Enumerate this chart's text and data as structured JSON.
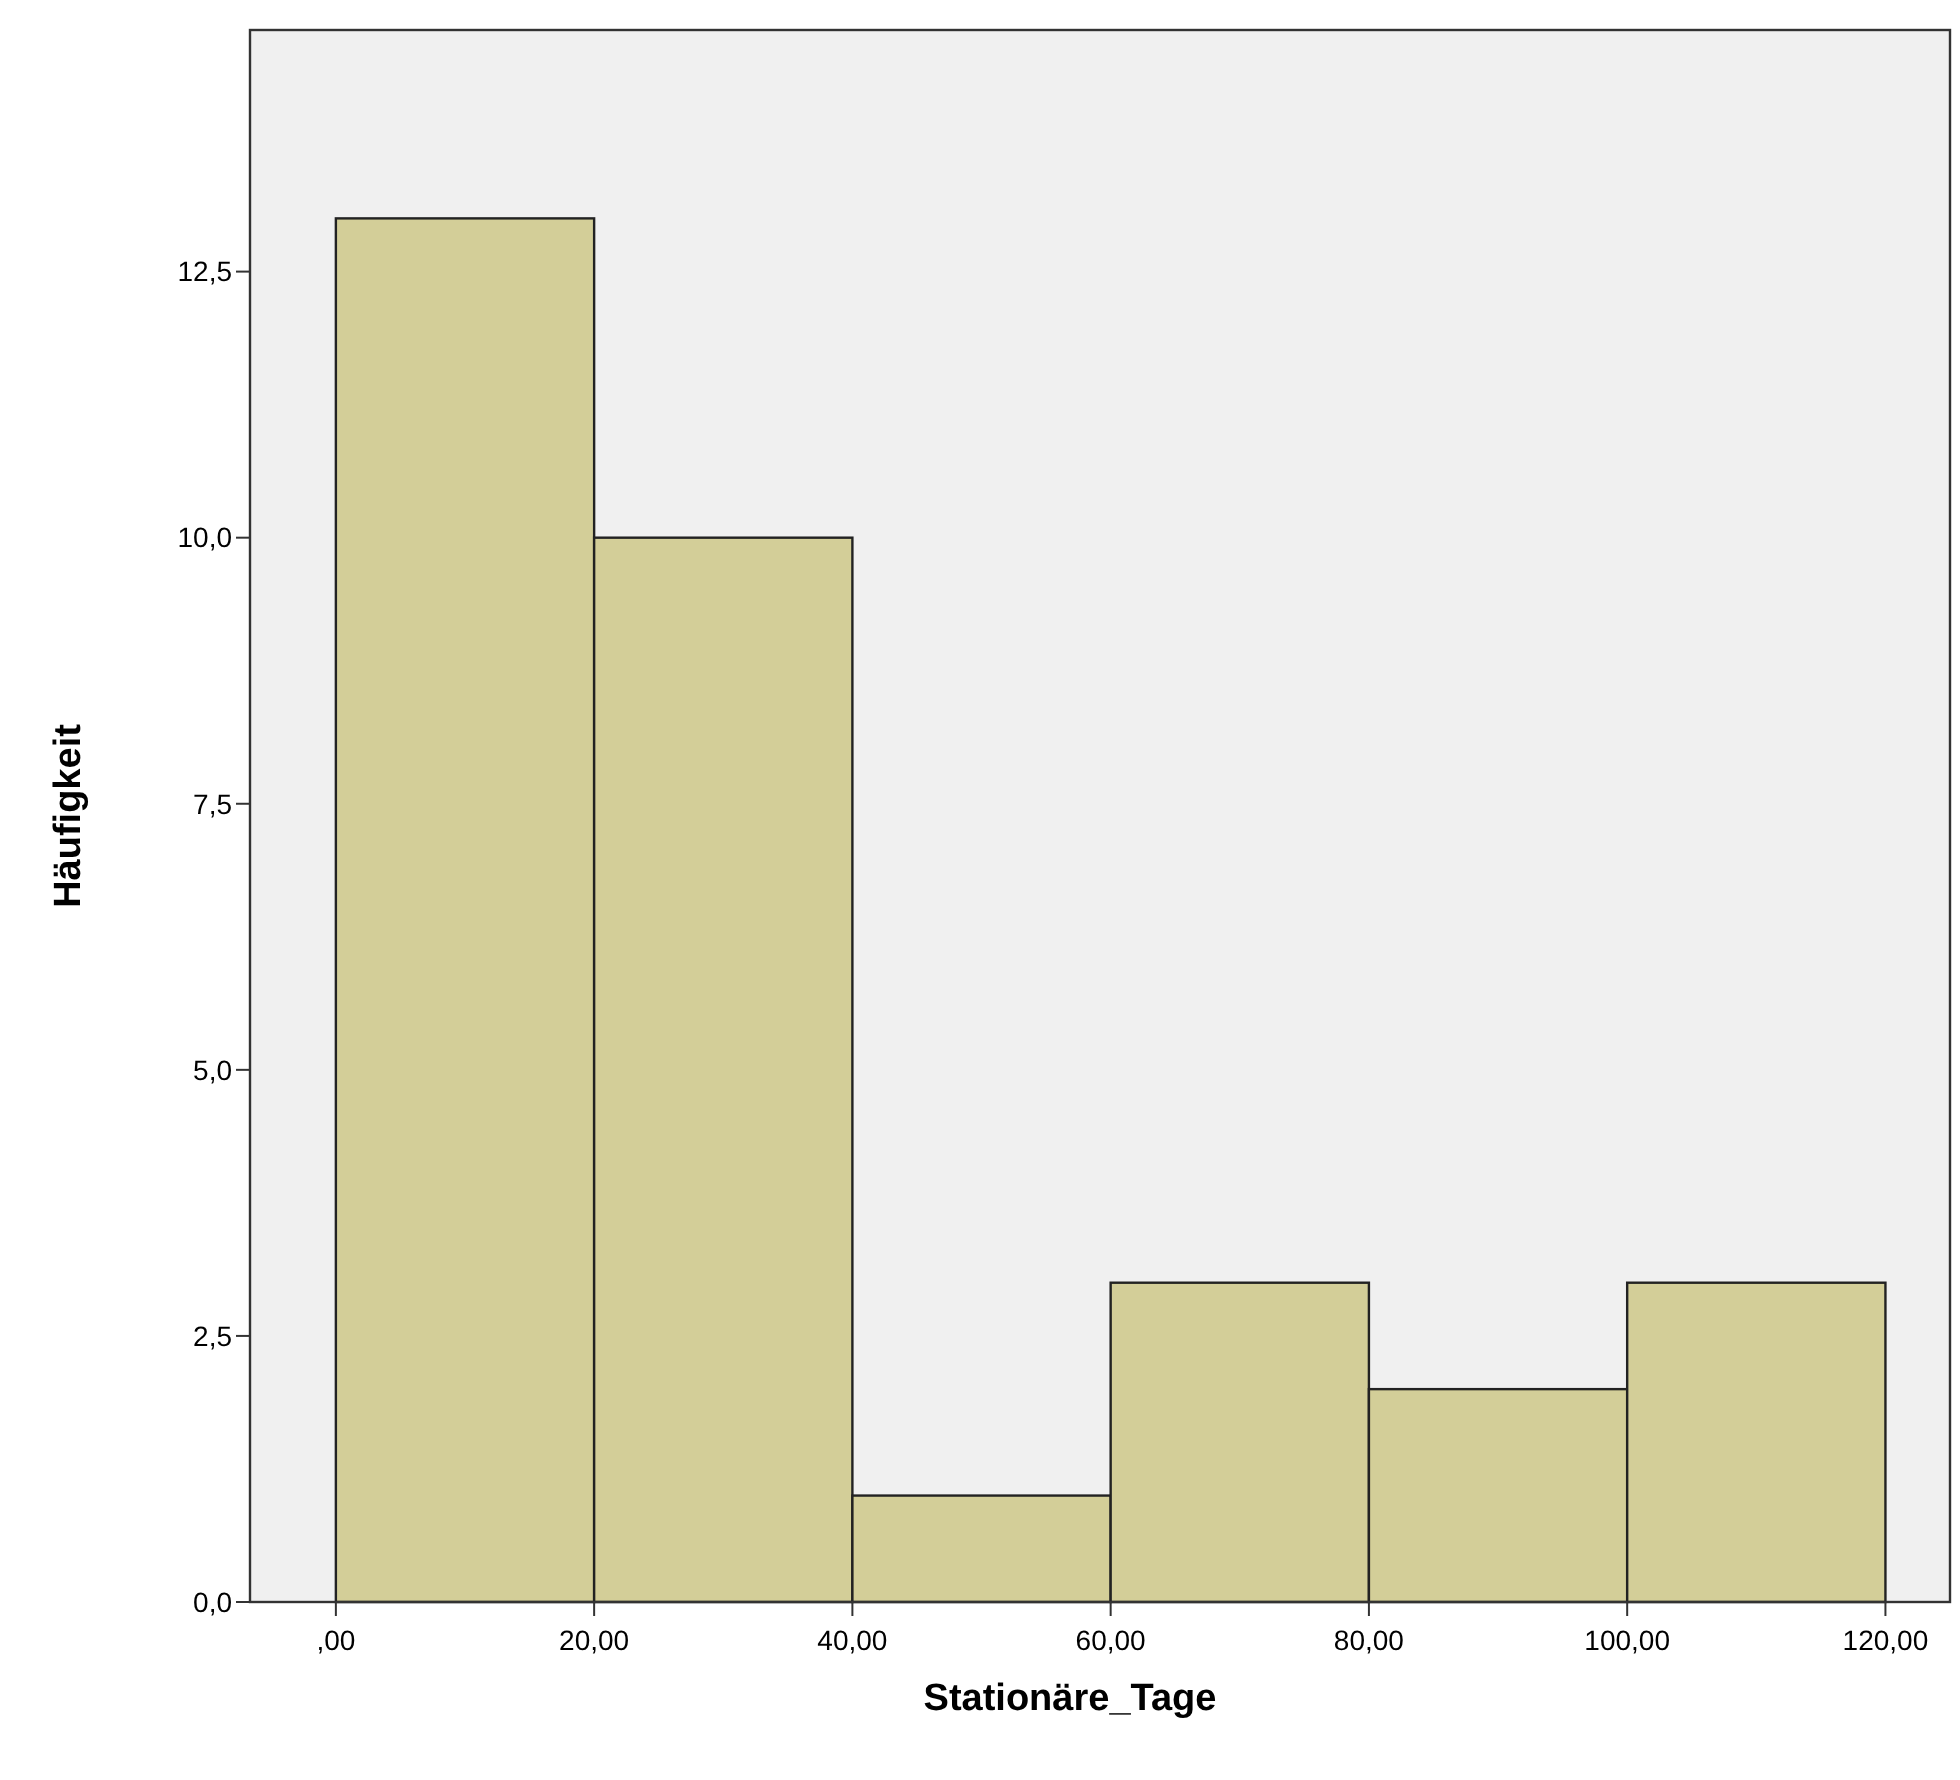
{
  "chart_data": {
    "type": "histogram",
    "xlabel": "Stationäre_Tage",
    "ylabel": "Häufigkeit",
    "color": "#d3ce98",
    "bins": [
      0,
      20,
      40,
      60,
      80,
      100,
      120
    ],
    "values": [
      13,
      10,
      1,
      3,
      2,
      3
    ],
    "xlim": [
      -6.65,
      125
    ],
    "ylim": [
      0,
      14.77
    ],
    "xticks": [
      {
        "value": 0,
        "label": ",00"
      },
      {
        "value": 20,
        "label": "20,00"
      },
      {
        "value": 40,
        "label": "40,00"
      },
      {
        "value": 60,
        "label": "60,00"
      },
      {
        "value": 80,
        "label": "80,00"
      },
      {
        "value": 100,
        "label": "100,00"
      },
      {
        "value": 120,
        "label": "120,00"
      }
    ],
    "yticks": [
      {
        "value": 0,
        "label": "0,0"
      },
      {
        "value": 2.5,
        "label": "2,5"
      },
      {
        "value": 5,
        "label": "5,0"
      },
      {
        "value": 7.5,
        "label": "7,5"
      },
      {
        "value": 10,
        "label": "10,0"
      },
      {
        "value": 12.5,
        "label": "12,5"
      }
    ],
    "grid": false
  }
}
